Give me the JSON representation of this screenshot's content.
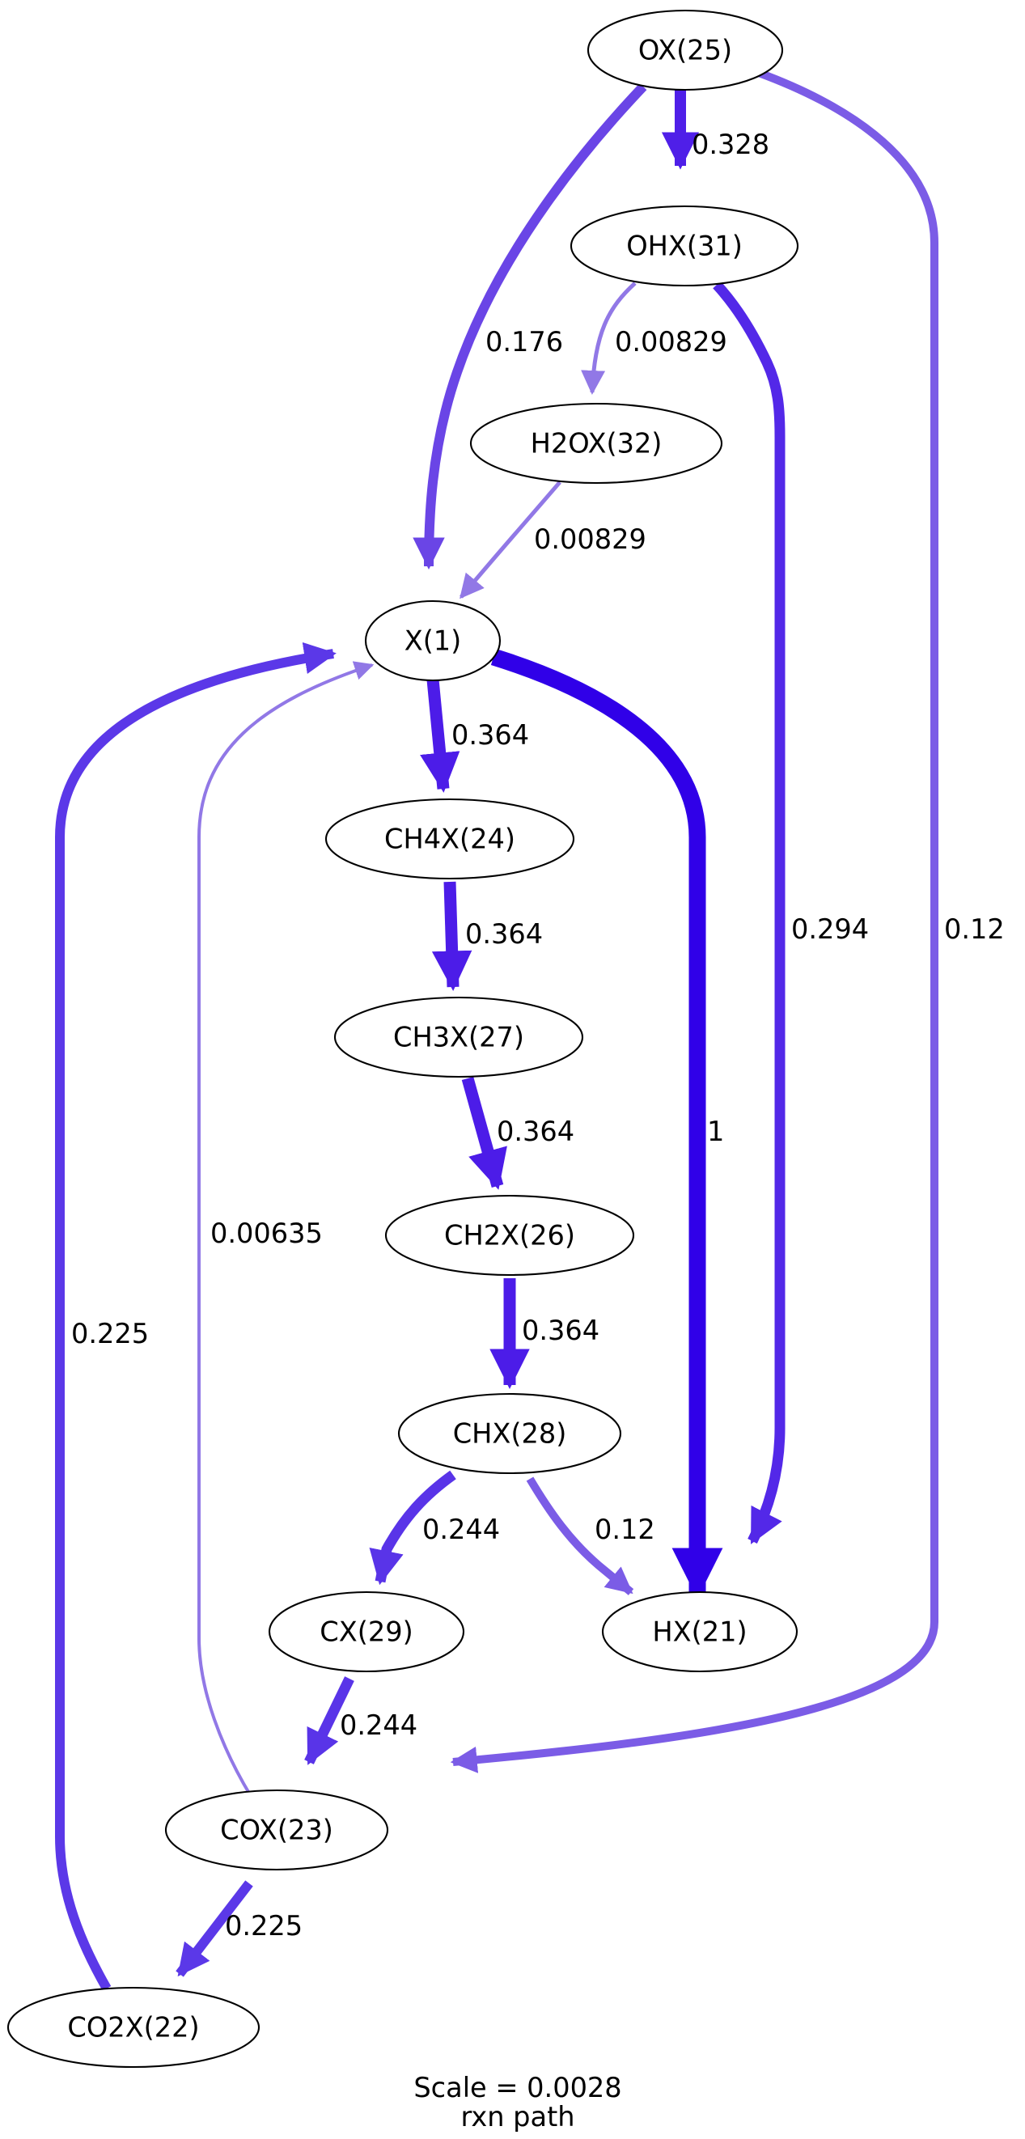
{
  "diagram": {
    "nodes": {
      "ox25": "OX(25)",
      "ohx31": "OHX(31)",
      "h2ox32": "H2OX(32)",
      "x1": "X(1)",
      "ch4x24": "CH4X(24)",
      "ch3x27": "CH3X(27)",
      "ch2x26": "CH2X(26)",
      "chx28": "CHX(28)",
      "cx29": "CX(29)",
      "hx21": "HX(21)",
      "cox23": "COX(23)",
      "co2x22": "CO2X(22)"
    },
    "edges": [
      {
        "from": "OX(25)",
        "to": "OHX(31)",
        "label": "0.328",
        "color": "#4f1fe8"
      },
      {
        "from": "OX(25)",
        "to": "X(1)",
        "label": "0.176",
        "color": "#6a45e6"
      },
      {
        "from": "OX(25)",
        "to": "COX(23)",
        "label": "0.12",
        "color": "#7b5ce6"
      },
      {
        "from": "OHX(31)",
        "to": "H2OX(32)",
        "label": "0.00829",
        "color": "#9178e6"
      },
      {
        "from": "OHX(31)",
        "to": "HX(21)",
        "label": "0.294",
        "color": "#5328e8"
      },
      {
        "from": "H2OX(32)",
        "to": "X(1)",
        "label": "0.00829",
        "color": "#9178e6"
      },
      {
        "from": "X(1)",
        "to": "CH4X(24)",
        "label": "0.364",
        "color": "#4c1ce8"
      },
      {
        "from": "X(1)",
        "to": "HX(21)",
        "label": "1",
        "color": "#3000e8"
      },
      {
        "from": "CH4X(24)",
        "to": "CH3X(27)",
        "label": "0.364",
        "color": "#4c1ce8"
      },
      {
        "from": "CH3X(27)",
        "to": "CH2X(26)",
        "label": "0.364",
        "color": "#4c1ce8"
      },
      {
        "from": "CH2X(26)",
        "to": "CHX(28)",
        "label": "0.364",
        "color": "#4c1ce8"
      },
      {
        "from": "CHX(28)",
        "to": "CX(29)",
        "label": "0.244",
        "color": "#5934e8"
      },
      {
        "from": "CHX(28)",
        "to": "HX(21)",
        "label": "0.12",
        "color": "#7b5ce6"
      },
      {
        "from": "CX(29)",
        "to": "COX(23)",
        "label": "0.244",
        "color": "#5934e8"
      },
      {
        "from": "COX(23)",
        "to": "X(1)",
        "label": "0.00635",
        "color": "#9178e6"
      },
      {
        "from": "COX(23)",
        "to": "CO2X(22)",
        "label": "0.225",
        "color": "#5b38e8"
      },
      {
        "from": "CO2X(22)",
        "to": "X(1)",
        "label": "0.225",
        "color": "#5b38e8"
      }
    ],
    "caption": {
      "line1": "Scale = 0.0028",
      "line2": "rxn path"
    }
  }
}
